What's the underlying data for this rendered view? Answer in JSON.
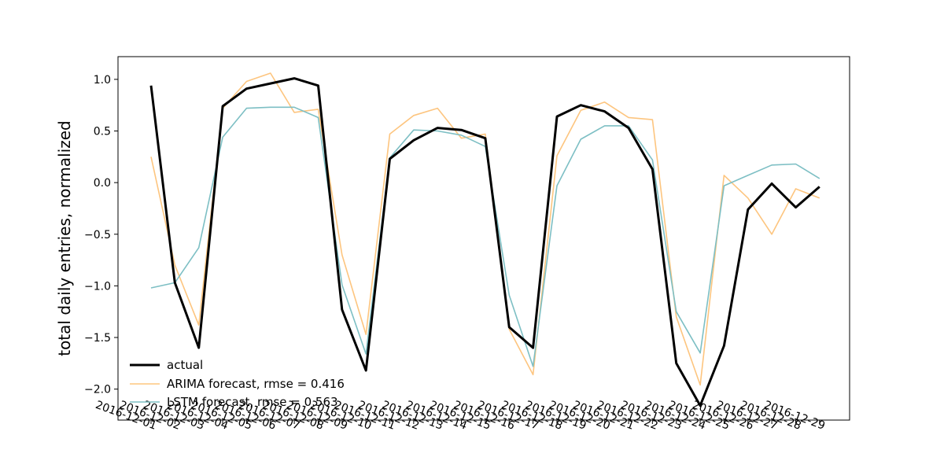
{
  "chart_data": {
    "type": "line",
    "title": "",
    "xlabel": "",
    "ylabel": "total daily entries, normalized",
    "x": [
      "2016-12-01",
      "2016-12-02",
      "2016-12-03",
      "2016-12-04",
      "2016-12-05",
      "2016-12-06",
      "2016-12-07",
      "2016-12-08",
      "2016-12-09",
      "2016-12-10",
      "2016-12-11",
      "2016-12-12",
      "2016-12-13",
      "2016-12-14",
      "2016-12-15",
      "2016-12-16",
      "2016-12-17",
      "2016-12-18",
      "2016-12-19",
      "2016-12-20",
      "2016-12-21",
      "2016-12-22",
      "2016-12-23",
      "2016-12-24",
      "2016-12-25",
      "2016-12-26",
      "2016-12-27",
      "2016-12-28",
      "2016-12-29"
    ],
    "ylim": [
      -2.3,
      1.22
    ],
    "yticks": [
      -2.0,
      -1.5,
      -1.0,
      -0.5,
      0.0,
      0.5,
      1.0
    ],
    "ytick_labels": [
      "−2.0",
      "−1.5",
      "−1.0",
      "−0.5",
      "0.0",
      "0.5",
      "1.0"
    ],
    "grid": false,
    "legend_position": "lower-left",
    "series": [
      {
        "name": "actual",
        "color": "#000000",
        "values": [
          0.94,
          -0.97,
          -1.6,
          0.74,
          0.91,
          0.96,
          1.01,
          0.94,
          -1.23,
          -1.82,
          0.23,
          0.41,
          0.53,
          0.51,
          0.43,
          -1.4,
          -1.6,
          0.64,
          0.75,
          0.69,
          0.53,
          0.13,
          -1.75,
          -2.16,
          -1.58,
          -0.26,
          -0.01,
          -0.24,
          -0.04
        ]
      },
      {
        "name": "ARIMA forecast, rmse = 0.416",
        "color": "#fdc57f",
        "values": [
          0.25,
          -0.8,
          -1.38,
          0.72,
          0.98,
          1.06,
          0.68,
          0.71,
          -0.7,
          -1.47,
          0.47,
          0.65,
          0.72,
          0.43,
          0.47,
          -1.42,
          -1.86,
          0.26,
          0.7,
          0.78,
          0.63,
          0.61,
          -1.3,
          -1.96,
          0.07,
          -0.15,
          -0.5,
          -0.06,
          -0.15
        ]
      },
      {
        "name": "LSTM forecast, rmse = 0.563",
        "color": "#7dbfc4",
        "values": [
          -1.02,
          -0.97,
          -0.63,
          0.44,
          0.72,
          0.73,
          0.73,
          0.63,
          -0.99,
          -1.66,
          0.24,
          0.51,
          0.5,
          0.46,
          0.35,
          -1.09,
          -1.78,
          -0.03,
          0.42,
          0.55,
          0.55,
          0.22,
          -1.25,
          -1.65,
          -0.03,
          0.07,
          0.17,
          0.18,
          0.04
        ]
      }
    ]
  }
}
